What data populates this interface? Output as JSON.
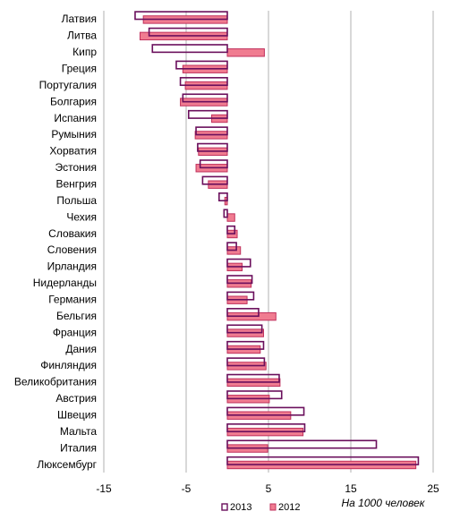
{
  "chart_data": {
    "type": "bar",
    "orientation": "horizontal",
    "title": "",
    "xlabel": "На 1000 человек",
    "ylabel": "",
    "xlim": [
      -15,
      25
    ],
    "x_ticks": [
      -15,
      -5,
      5,
      15,
      25
    ],
    "grid": "vertical",
    "legend_position": "bottom",
    "colors": {
      "2013": "#6a0f5c",
      "2012_fill": "#f07c90",
      "2012_edge": "#c0305c",
      "grid": "#b0b0b0"
    },
    "categories": [
      "Латвия",
      "Литва",
      "Кипр",
      "Греция",
      "Португалия",
      "Болгария",
      "Испания",
      "Румыния",
      "Хорватия",
      "Эстония",
      "Венгрия",
      "Польша",
      "Чехия",
      "Словакия",
      "Словения",
      "Ирландия",
      "Нидерланды",
      "Германия",
      "Бельгия",
      "Франция",
      "Дания",
      "Финляндия",
      "Великобритания",
      "Австрия",
      "Швеция",
      "Мальта",
      "Италия",
      "Люксембург"
    ],
    "series": [
      {
        "name": "2013",
        "style": "outline",
        "values": [
          -11.2,
          -9.5,
          -9.1,
          -6.2,
          -5.7,
          -5.4,
          -4.7,
          -3.8,
          -3.6,
          -3.3,
          -3.0,
          -1.0,
          -0.4,
          0.9,
          1.1,
          2.8,
          3.0,
          3.2,
          3.8,
          4.2,
          4.4,
          4.5,
          6.3,
          6.6,
          9.3,
          9.4,
          18.1,
          23.2
        ]
      },
      {
        "name": "2012",
        "style": "filled",
        "values": [
          -10.2,
          -10.6,
          4.5,
          -5.4,
          -5.1,
          -5.7,
          -1.9,
          -3.9,
          -3.5,
          -3.8,
          -2.3,
          -0.3,
          0.9,
          1.2,
          1.6,
          1.8,
          2.9,
          2.4,
          5.9,
          4.4,
          4.0,
          4.7,
          6.4,
          5.1,
          7.7,
          9.2,
          4.9,
          22.9
        ]
      }
    ]
  }
}
